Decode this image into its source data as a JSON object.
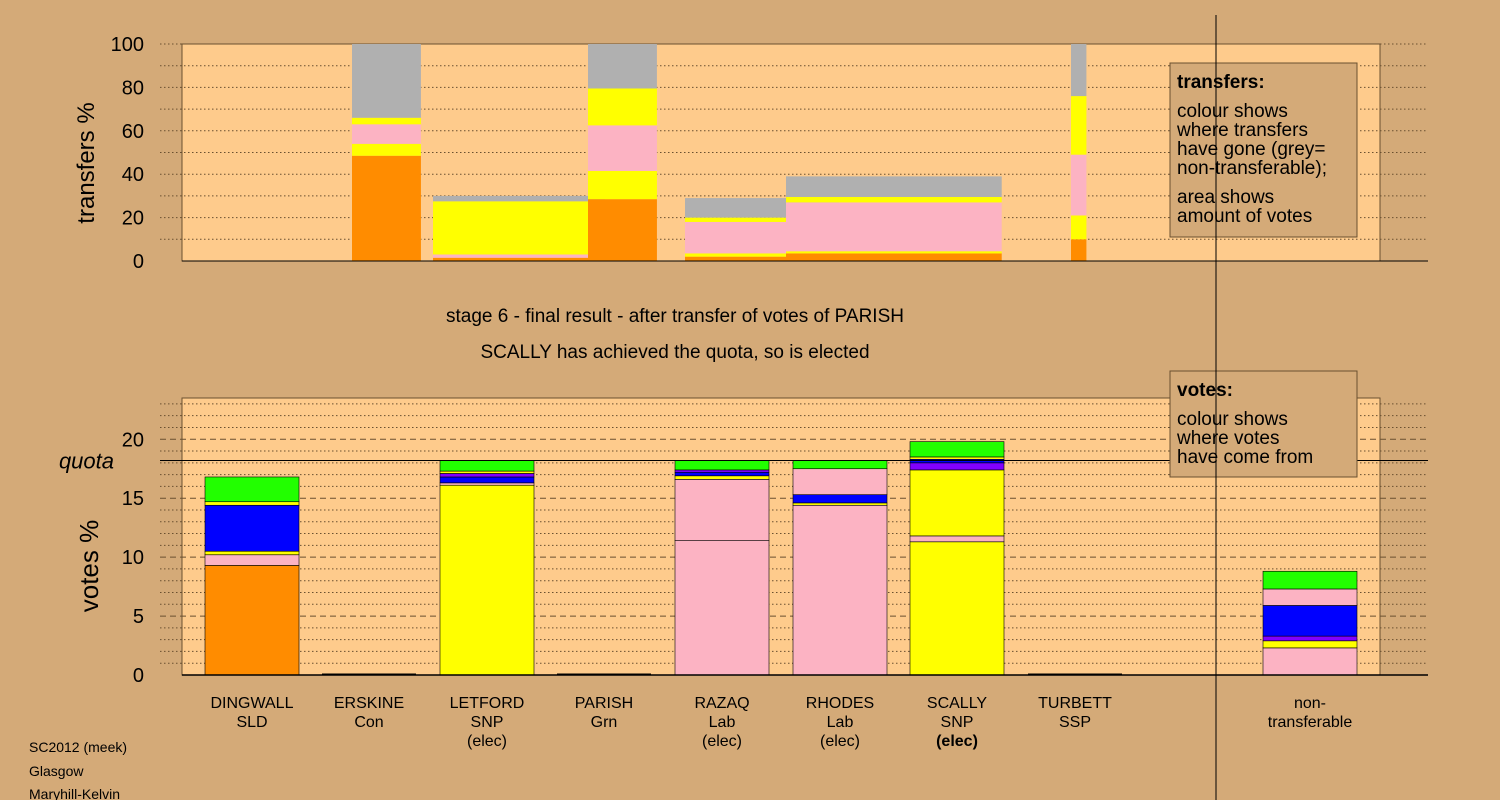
{
  "header": {
    "line1": "stage 6 - final result - after transfer of votes of PARISH",
    "line2": "SCALLY has achieved the quota, so is elected"
  },
  "footer": {
    "line1": "SC2012 (meek)",
    "line2": "Glasgow",
    "line3": "Maryhill-Kelvin"
  },
  "colors": {
    "background": "#d4aa78",
    "plot": "#fecb8c",
    "orange": "#ff8c00",
    "yellow": "#ffff00",
    "pink": "#fcb3c3",
    "blue": "#0000ff",
    "purple": "#8000ff",
    "green": "#22ff00",
    "grey": "#b0b0b0"
  },
  "chart_data": [
    {
      "type": "bar",
      "ylabel": "transfers %",
      "ylim": [
        0,
        100
      ],
      "yticks": [
        0,
        20,
        40,
        60,
        80,
        100
      ],
      "legend": {
        "title": "transfers:",
        "lines": [
          "colour shows",
          "where transfers",
          "have gone (grey=",
          "non-transferable);",
          "area shows",
          "amount of votes"
        ]
      },
      "bars": [
        {
          "candidate": "ERSKINE",
          "x_from": 0,
          "x_to": 0.0085,
          "segments": [
            {
              "color": "orange",
              "from": 0,
              "to": 48.5
            },
            {
              "color": "yellow",
              "from": 48.5,
              "to": 54
            },
            {
              "color": "pink",
              "from": 54,
              "to": 63
            },
            {
              "color": "yellow",
              "from": 63,
              "to": 66
            },
            {
              "color": "grey",
              "from": 66,
              "to": 100
            }
          ]
        },
        {
          "candidate": "TURBETT",
          "x_from": 0.0085,
          "x_to": 0.0104,
          "segments": [
            {
              "color": "orange",
              "from": 0,
              "to": 10
            },
            {
              "color": "yellow",
              "from": 10,
              "to": 21
            },
            {
              "color": "pink",
              "from": 21,
              "to": 49
            },
            {
              "color": "yellow",
              "from": 49,
              "to": 76
            },
            {
              "color": "grey",
              "from": 76,
              "to": 100
            }
          ]
        },
        {
          "candidate": "LETFORD",
          "x_from": 0.0104,
          "x_to": 0.0316,
          "segments": [
            {
              "color": "orange",
              "from": 0,
              "to": 1.5
            },
            {
              "color": "pink",
              "from": 1.5,
              "to": 3
            },
            {
              "color": "yellow",
              "from": 3,
              "to": 27.5
            },
            {
              "color": "grey",
              "from": 27.5,
              "to": 30
            }
          ]
        },
        {
          "candidate": "PARISH",
          "x_from": 0.0316,
          "x_to": 0.0401,
          "segments": [
            {
              "color": "orange",
              "from": 0,
              "to": 28.5
            },
            {
              "color": "yellow",
              "from": 28.5,
              "to": 41.5
            },
            {
              "color": "pink",
              "from": 41.5,
              "to": 62.5
            },
            {
              "color": "yellow",
              "from": 62.5,
              "to": 79.5
            },
            {
              "color": "grey",
              "from": 79.5,
              "to": 100
            }
          ]
        },
        {
          "candidate": "RAZAQ",
          "x_from": 0.0401,
          "x_to": 0.0591,
          "segments": [
            {
              "color": "orange",
              "from": 0,
              "to": 2
            },
            {
              "color": "yellow",
              "from": 2,
              "to": 3.5
            },
            {
              "color": "pink",
              "from": 3.5,
              "to": 18
            },
            {
              "color": "yellow",
              "from": 18,
              "to": 20
            },
            {
              "color": "grey",
              "from": 20,
              "to": 29
            }
          ]
        },
        {
          "candidate": "RHODES",
          "x_from": 0.0591,
          "x_to": 0.0857,
          "segments": [
            {
              "color": "orange",
              "from": 0,
              "to": 3.5
            },
            {
              "color": "yellow",
              "from": 3.5,
              "to": 4.5
            },
            {
              "color": "pink",
              "from": 4.5,
              "to": 27
            },
            {
              "color": "yellow",
              "from": 27,
              "to": 29.5
            },
            {
              "color": "grey",
              "from": 29.5,
              "to": 39
            }
          ]
        }
      ]
    },
    {
      "type": "bar",
      "ylabel": "votes %",
      "ylim": [
        0,
        23.5
      ],
      "yticks": [
        0,
        5,
        10,
        15,
        20
      ],
      "quota": 18.2,
      "quota_label": "quota",
      "legend": {
        "title": "votes:",
        "lines": [
          "colour shows",
          "where votes",
          "have come from"
        ]
      },
      "categories": [
        {
          "name": "DINGWALL",
          "party": "SLD",
          "note": ""
        },
        {
          "name": "ERSKINE",
          "party": "Con",
          "note": ""
        },
        {
          "name": "LETFORD",
          "party": "SNP",
          "note": "(elec)"
        },
        {
          "name": "PARISH",
          "party": "Grn",
          "note": ""
        },
        {
          "name": "RAZAQ",
          "party": "Lab",
          "note": "(elec)"
        },
        {
          "name": "RHODES",
          "party": "Lab",
          "note": "(elec)"
        },
        {
          "name": "SCALLY",
          "party": "SNP",
          "note": "(elec)"
        },
        {
          "name": "TURBETT",
          "party": "SSP",
          "note": ""
        },
        {
          "name": "non-",
          "party": "transferable",
          "note": ""
        }
      ],
      "stacks": [
        [
          {
            "color": "orange",
            "from": 0,
            "to": 9.3
          },
          {
            "color": "pink",
            "from": 9.3,
            "to": 10.2
          },
          {
            "color": "yellow",
            "from": 10.2,
            "to": 10.5
          },
          {
            "color": "blue",
            "from": 10.5,
            "to": 14.4
          },
          {
            "color": "yellow",
            "from": 14.4,
            "to": 14.7
          },
          {
            "color": "green",
            "from": 14.7,
            "to": 16.8
          }
        ],
        [],
        [
          {
            "color": "yellow",
            "from": 0,
            "to": 16.1
          },
          {
            "color": "pink",
            "from": 16.1,
            "to": 16.3
          },
          {
            "color": "blue",
            "from": 16.3,
            "to": 16.8
          },
          {
            "color": "purple",
            "from": 16.8,
            "to": 17.1
          },
          {
            "color": "yellow",
            "from": 17.1,
            "to": 17.3
          },
          {
            "color": "green",
            "from": 17.3,
            "to": 18.2
          }
        ],
        [],
        [
          {
            "color": "pink",
            "from": 0,
            "to": 11.4
          },
          {
            "color": "pink",
            "from": 11.4,
            "to": 16.6
          },
          {
            "color": "yellow",
            "from": 16.6,
            "to": 16.9
          },
          {
            "color": "blue",
            "from": 16.9,
            "to": 17.2
          },
          {
            "color": "purple",
            "from": 17.2,
            "to": 17.4
          },
          {
            "color": "green",
            "from": 17.4,
            "to": 18.2
          }
        ],
        [
          {
            "color": "pink",
            "from": 0,
            "to": 14.4
          },
          {
            "color": "yellow",
            "from": 14.4,
            "to": 14.6
          },
          {
            "color": "blue",
            "from": 14.6,
            "to": 15.3
          },
          {
            "color": "pink",
            "from": 15.3,
            "to": 17.5
          },
          {
            "color": "green",
            "from": 17.5,
            "to": 18.2
          }
        ],
        [
          {
            "color": "yellow",
            "from": 0,
            "to": 11.3
          },
          {
            "color": "pink",
            "from": 11.3,
            "to": 11.8
          },
          {
            "color": "yellow",
            "from": 11.8,
            "to": 17.4
          },
          {
            "color": "purple",
            "from": 17.4,
            "to": 18.0
          },
          {
            "color": "blue",
            "from": 18.0,
            "to": 18.3
          },
          {
            "color": "yellow",
            "from": 18.3,
            "to": 18.5
          },
          {
            "color": "green",
            "from": 18.5,
            "to": 19.8
          }
        ],
        [],
        [
          {
            "color": "pink",
            "from": 0,
            "to": 2.3
          },
          {
            "color": "yellow",
            "from": 2.3,
            "to": 2.9
          },
          {
            "color": "purple",
            "from": 2.9,
            "to": 3.3
          },
          {
            "color": "blue",
            "from": 3.3,
            "to": 5.9
          },
          {
            "color": "pink",
            "from": 5.9,
            "to": 7.3
          },
          {
            "color": "green",
            "from": 7.3,
            "to": 8.8
          }
        ]
      ]
    }
  ]
}
